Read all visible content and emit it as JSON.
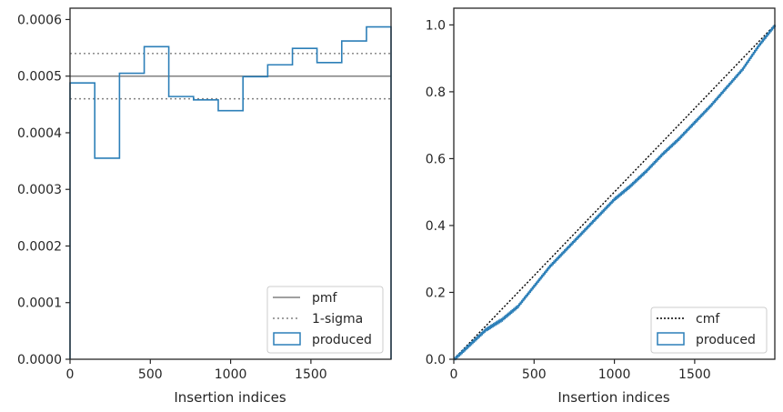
{
  "chart_data": [
    {
      "type": "line",
      "xlabel": "Insertion indices",
      "ylabel": "",
      "xlim": [
        0,
        1999
      ],
      "ylim": [
        0,
        0.00062
      ],
      "xticks": [
        0,
        500,
        1000,
        1500
      ],
      "yticks": [
        0,
        0.0001,
        0.0002,
        0.0003,
        0.0004,
        0.0005,
        0.0006
      ],
      "ytick_labels": [
        "0.0000",
        "0.0001",
        "0.0002",
        "0.0003",
        "0.0004",
        "0.0005",
        "0.0006"
      ],
      "xtick_labels": [
        "0",
        "500",
        "1000",
        "1500"
      ],
      "legend_position": "lower-right",
      "legend": [
        "pmf",
        "1-sigma",
        "produced"
      ],
      "pmf": 0.0005,
      "sigma_band": [
        0.00046,
        0.00054
      ],
      "histogram": {
        "name": "produced",
        "bin_edges": [
          0,
          154,
          308,
          462,
          615,
          769,
          923,
          1077,
          1231,
          1385,
          1538,
          1692,
          1846,
          1999
        ],
        "values": [
          0.000488,
          0.000355,
          0.000505,
          0.000552,
          0.000464,
          0.000458,
          0.000439,
          0.000499,
          0.00052,
          0.000549,
          0.000524,
          0.000562,
          0.000587
        ]
      },
      "colors": {
        "produced": "#2c7fb8",
        "pmf": "#808080",
        "sigma": "#808080"
      }
    },
    {
      "type": "line",
      "xlabel": "Insertion indices",
      "ylabel": "",
      "xlim": [
        0,
        1999
      ],
      "ylim": [
        0,
        1.05
      ],
      "xticks": [
        0,
        500,
        1000,
        1500
      ],
      "yticks": [
        0,
        0.2,
        0.4,
        0.6,
        0.8,
        1.0
      ],
      "ytick_labels": [
        "0.0",
        "0.2",
        "0.4",
        "0.6",
        "0.8",
        "1.0"
      ],
      "xtick_labels": [
        "0",
        "500",
        "1000",
        "1500"
      ],
      "legend_position": "lower-right",
      "legend": [
        "cmf",
        "produced"
      ],
      "cmf": {
        "x": [
          0,
          1999
        ],
        "y": [
          0,
          1
        ]
      },
      "produced": {
        "name": "produced",
        "x": [
          0,
          100,
          200,
          300,
          400,
          500,
          600,
          700,
          800,
          900,
          1000,
          1100,
          1200,
          1300,
          1400,
          1500,
          1600,
          1700,
          1800,
          1900,
          1999
        ],
        "y": [
          0,
          0.045,
          0.09,
          0.12,
          0.16,
          0.22,
          0.28,
          0.33,
          0.38,
          0.43,
          0.48,
          0.52,
          0.565,
          0.615,
          0.66,
          0.71,
          0.76,
          0.815,
          0.87,
          0.94,
          1.0
        ]
      },
      "colors": {
        "produced": "#2c7fb8",
        "cmf": "#000000"
      }
    }
  ]
}
